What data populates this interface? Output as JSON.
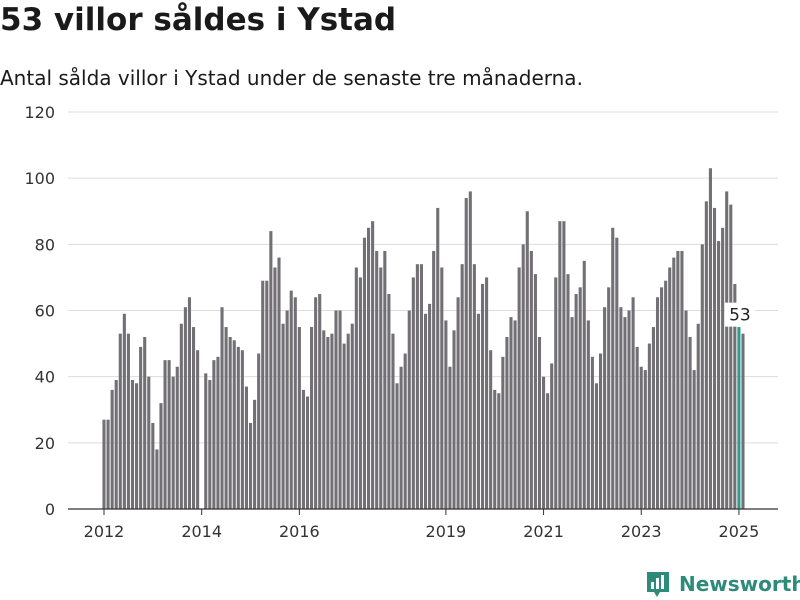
{
  "title": "53 villor såldes i Ystad",
  "subtitle": "Antal sålda villor i Ystad under de senaste tre månaderna.",
  "brand": {
    "name": "Newsworthy",
    "icon": "newsworthy-logo-icon",
    "color": "#2e8b7a"
  },
  "colors": {
    "bar": "#727075",
    "highlight": "#2a9d8f",
    "grid": "#dddddd",
    "axis": "#333333"
  },
  "chart_data": {
    "type": "bar",
    "title": "53 villor såldes i Ystad",
    "subtitle": "Antal sålda villor i Ystad under de senaste tre månaderna.",
    "xlabel": "",
    "ylabel": "",
    "ylim": [
      0,
      120
    ],
    "yticks": [
      0,
      20,
      40,
      60,
      80,
      100,
      120
    ],
    "grid": true,
    "x_start": "2012-01",
    "x_end": "2025-01",
    "xticks": [
      "2012",
      "2014",
      "2016",
      "2019",
      "2021",
      "2023",
      "2025"
    ],
    "values": [
      27,
      27,
      36,
      39,
      53,
      59,
      53,
      39,
      38,
      49,
      52,
      40,
      26,
      18,
      32,
      45,
      45,
      40,
      43,
      56,
      61,
      64,
      55,
      48,
      0,
      41,
      39,
      45,
      46,
      61,
      55,
      52,
      51,
      49,
      48,
      37,
      26,
      33,
      47,
      69,
      69,
      84,
      73,
      76,
      56,
      60,
      66,
      64,
      55,
      36,
      34,
      55,
      64,
      65,
      54,
      52,
      53,
      60,
      60,
      50,
      53,
      56,
      73,
      70,
      82,
      85,
      87,
      78,
      73,
      78,
      65,
      53,
      38,
      43,
      47,
      60,
      70,
      74,
      74,
      59,
      62,
      78,
      91,
      73,
      57,
      43,
      54,
      64,
      74,
      94,
      96,
      74,
      59,
      68,
      70,
      48,
      36,
      35,
      46,
      52,
      58,
      57,
      73,
      80,
      90,
      78,
      71,
      52,
      40,
      35,
      44,
      70,
      87,
      87,
      71,
      58,
      65,
      67,
      75,
      57,
      46,
      38,
      47,
      61,
      67,
      85,
      82,
      61,
      58,
      60,
      64,
      49,
      43,
      42,
      50,
      55,
      64,
      67,
      69,
      73,
      76,
      78,
      78,
      60,
      52,
      42,
      56,
      80,
      93,
      103,
      91,
      81,
      85,
      96,
      92,
      68,
      55,
      53
    ],
    "highlight": {
      "date": "2025-01",
      "value": 53,
      "label": "53"
    }
  }
}
